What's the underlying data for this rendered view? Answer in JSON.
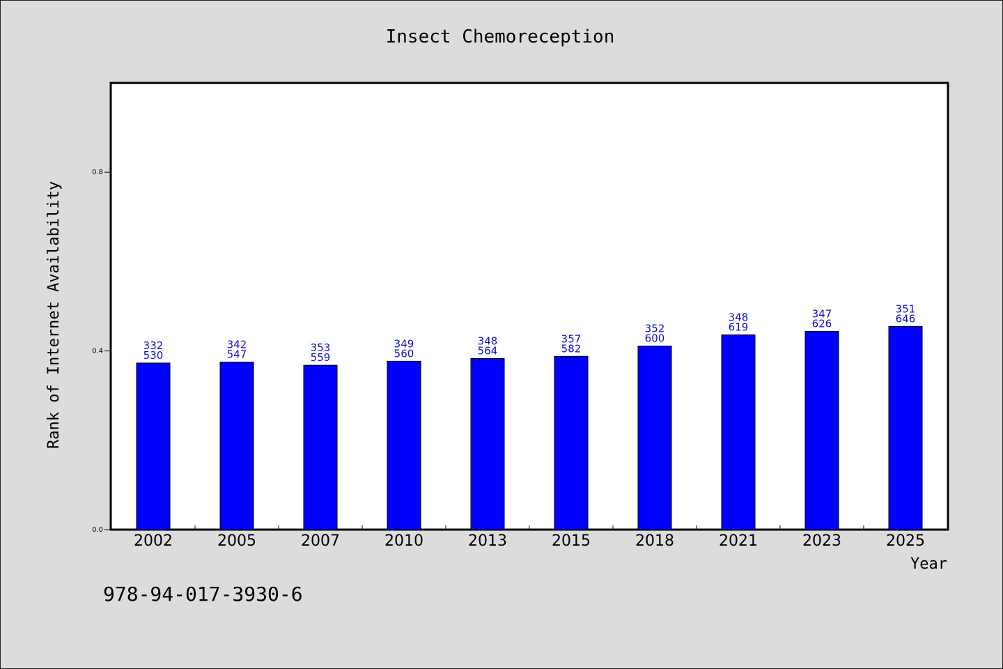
{
  "chart_data": {
    "type": "bar",
    "title": "Insect Chemoreception",
    "xlabel": "Year",
    "ylabel": "Rank of Internet Availability",
    "categories": [
      "2002",
      "2005",
      "2007",
      "2010",
      "2013",
      "2015",
      "2018",
      "2021",
      "2023",
      "2025"
    ],
    "values": [
      0.373,
      0.375,
      0.368,
      0.377,
      0.383,
      0.388,
      0.411,
      0.436,
      0.444,
      0.455
    ],
    "labels_top": [
      "332",
      "342",
      "353",
      "349",
      "348",
      "357",
      "352",
      "348",
      "347",
      "351"
    ],
    "labels_bottom": [
      "530",
      "547",
      "559",
      "560",
      "564",
      "582",
      "600",
      "619",
      "626",
      "646"
    ],
    "ylim": [
      0,
      1.0
    ],
    "yticks": [
      0.0,
      0.4,
      0.8
    ],
    "ytick_labels": [
      "0.0",
      "0.4",
      "0.8"
    ],
    "grid": false,
    "colors": {
      "bar": "#0000ff",
      "label": "#1010c8",
      "background": "#dcdcdc",
      "plot_bg": "#ffffff"
    }
  },
  "footer": {
    "isbn": "978-94-017-3930-6"
  }
}
